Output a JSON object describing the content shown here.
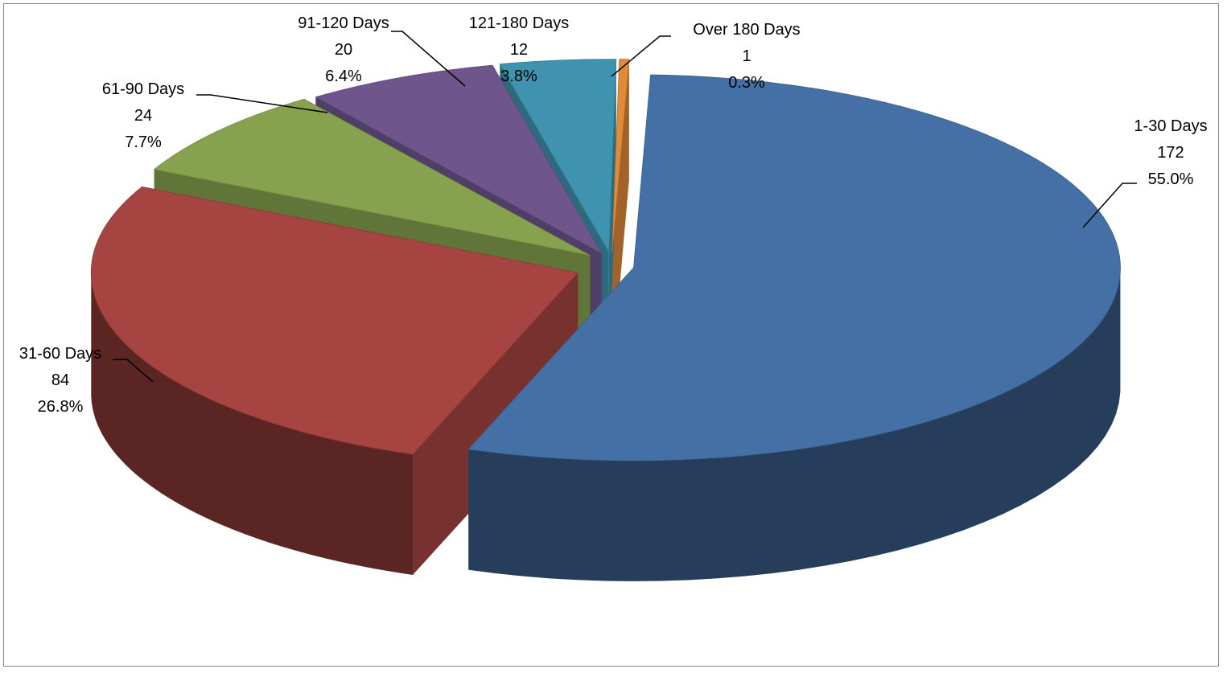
{
  "chart_data": {
    "type": "pie",
    "style": "3d-exploded",
    "title": "",
    "legend": "none",
    "slices": [
      {
        "label": "1-30 Days",
        "value": 172,
        "percent": "55.0%",
        "color": "#4570A5"
      },
      {
        "label": "31-60 Days",
        "value": 84,
        "percent": "26.8%",
        "color": "#A54441"
      },
      {
        "label": "61-90 Days",
        "value": 24,
        "percent": "7.7%",
        "color": "#87A24E"
      },
      {
        "label": "91-120 Days",
        "value": 20,
        "percent": "6.4%",
        "color": "#6E568D"
      },
      {
        "label": "121-180 Days",
        "value": 12,
        "percent": "3.8%",
        "color": "#3F93AE"
      },
      {
        "label": "Over 180 Days",
        "value": 1,
        "percent": "0.3%",
        "color": "#E08A3A"
      }
    ]
  }
}
